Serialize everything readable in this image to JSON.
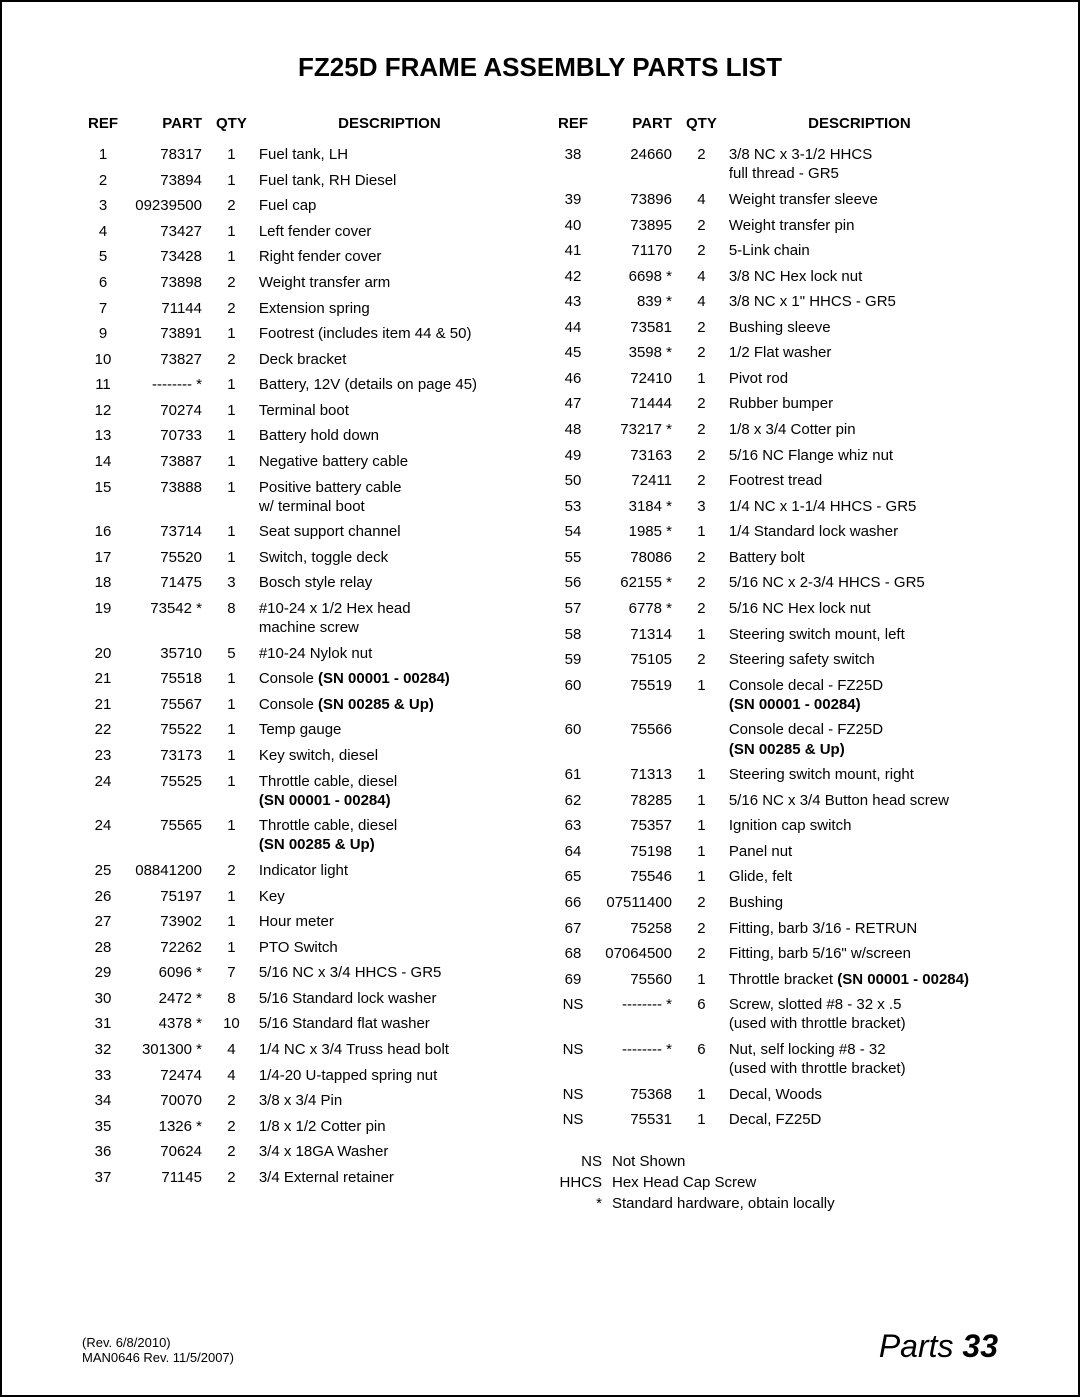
{
  "title": "FZ25D FRAME ASSEMBLY PARTS LIST",
  "headers": {
    "ref": "REF",
    "part": "PART",
    "qty": "QTY",
    "desc": "DESCRIPTION"
  },
  "left_rows": [
    {
      "ref": "1",
      "part": "78317",
      "qty": "1",
      "desc": "Fuel tank, LH"
    },
    {
      "ref": "2",
      "part": "73894",
      "qty": "1",
      "desc": "Fuel tank, RH Diesel"
    },
    {
      "ref": "3",
      "part": "09239500",
      "qty": "2",
      "desc": "Fuel cap"
    },
    {
      "ref": "4",
      "part": "73427",
      "qty": "1",
      "desc": "Left fender cover"
    },
    {
      "ref": "5",
      "part": "73428",
      "qty": "1",
      "desc": "Right fender cover"
    },
    {
      "ref": "6",
      "part": "73898",
      "qty": "2",
      "desc": "Weight transfer arm"
    },
    {
      "ref": "7",
      "part": "71144",
      "qty": "2",
      "desc": "Extension spring"
    },
    {
      "ref": "9",
      "part": "73891",
      "qty": "1",
      "desc": "Footrest (includes item 44 & 50)"
    },
    {
      "ref": "10",
      "part": "73827",
      "qty": "2",
      "desc": "Deck bracket"
    },
    {
      "ref": "11",
      "part": "-------- *",
      "qty": "1",
      "desc": "Battery, 12V (details on page 45)"
    },
    {
      "ref": "12",
      "part": "70274",
      "qty": "1",
      "desc": "Terminal boot"
    },
    {
      "ref": "13",
      "part": "70733",
      "qty": "1",
      "desc": "Battery hold down"
    },
    {
      "ref": "14",
      "part": "73887",
      "qty": "1",
      "desc": "Negative battery cable"
    },
    {
      "ref": "15",
      "part": "73888",
      "qty": "1",
      "desc": "Positive battery cable\nw/ terminal boot"
    },
    {
      "ref": "16",
      "part": "73714",
      "qty": "1",
      "desc": "Seat support channel"
    },
    {
      "ref": "17",
      "part": "75520",
      "qty": "1",
      "desc": "Switch, toggle deck"
    },
    {
      "ref": "18",
      "part": "71475",
      "qty": "3",
      "desc": "Bosch style relay"
    },
    {
      "ref": "19",
      "part": "73542 *",
      "qty": "8",
      "desc": "#10-24 x 1/2 Hex head\nmachine screw"
    },
    {
      "ref": "20",
      "part": "35710",
      "qty": "5",
      "desc": "#10-24 Nylok nut"
    },
    {
      "ref": "21",
      "part": "75518",
      "qty": "1",
      "desc": "Console ",
      "bold": "(SN 00001 - 00284)"
    },
    {
      "ref": "21",
      "part": "75567",
      "qty": "1",
      "desc": "Console ",
      "bold": "(SN 00285 & Up)"
    },
    {
      "ref": "22",
      "part": "75522",
      "qty": "1",
      "desc": "Temp gauge"
    },
    {
      "ref": "23",
      "part": "73173",
      "qty": "1",
      "desc": "Key switch, diesel"
    },
    {
      "ref": "24",
      "part": "75525",
      "qty": "1",
      "desc": "Throttle cable, diesel\n",
      "bold": "(SN 00001 - 00284)"
    },
    {
      "ref": "24",
      "part": "75565",
      "qty": "1",
      "desc": "Throttle cable, diesel\n",
      "bold": "(SN 00285 & Up)"
    },
    {
      "ref": "25",
      "part": "08841200",
      "qty": "2",
      "desc": "Indicator light"
    },
    {
      "ref": "26",
      "part": "75197",
      "qty": "1",
      "desc": "Key"
    },
    {
      "ref": "27",
      "part": "73902",
      "qty": "1",
      "desc": "Hour meter"
    },
    {
      "ref": "28",
      "part": "72262",
      "qty": "1",
      "desc": "PTO Switch"
    },
    {
      "ref": "29",
      "part": "6096 *",
      "qty": "7",
      "desc": "5/16 NC x 3/4 HHCS - GR5"
    },
    {
      "ref": "30",
      "part": "2472 *",
      "qty": "8",
      "desc": "5/16 Standard lock washer"
    },
    {
      "ref": "31",
      "part": "4378 *",
      "qty": "10",
      "desc": "5/16 Standard flat washer"
    },
    {
      "ref": "32",
      "part": "301300 *",
      "qty": "4",
      "desc": "1/4 NC x 3/4 Truss head bolt"
    },
    {
      "ref": "33",
      "part": "72474",
      "qty": "4",
      "desc": "1/4-20 U-tapped spring nut"
    },
    {
      "ref": "34",
      "part": "70070",
      "qty": "2",
      "desc": "3/8 x 3/4 Pin"
    },
    {
      "ref": "35",
      "part": "1326 *",
      "qty": "2",
      "desc": "1/8 x 1/2 Cotter pin"
    },
    {
      "ref": "36",
      "part": "70624",
      "qty": "2",
      "desc": "3/4 x 18GA Washer"
    },
    {
      "ref": "37",
      "part": "71145",
      "qty": "2",
      "desc": "3/4 External retainer"
    }
  ],
  "right_rows": [
    {
      "ref": "38",
      "part": "24660",
      "qty": "2",
      "desc": "3/8 NC x 3-1/2 HHCS\nfull thread - GR5"
    },
    {
      "ref": "39",
      "part": "73896",
      "qty": "4",
      "desc": "Weight transfer sleeve"
    },
    {
      "ref": "40",
      "part": "73895",
      "qty": "2",
      "desc": "Weight transfer pin"
    },
    {
      "ref": "41",
      "part": "71170",
      "qty": "2",
      "desc": "5-Link chain"
    },
    {
      "ref": "42",
      "part": "6698 *",
      "qty": "4",
      "desc": "3/8 NC Hex lock nut"
    },
    {
      "ref": "43",
      "part": "839 *",
      "qty": "4",
      "desc": "3/8 NC x 1\" HHCS - GR5"
    },
    {
      "ref": "44",
      "part": "73581",
      "qty": "2",
      "desc": "Bushing sleeve"
    },
    {
      "ref": "45",
      "part": "3598 *",
      "qty": "2",
      "desc": "1/2 Flat washer"
    },
    {
      "ref": "46",
      "part": "72410",
      "qty": "1",
      "desc": "Pivot rod"
    },
    {
      "ref": "47",
      "part": "71444",
      "qty": "2",
      "desc": "Rubber bumper"
    },
    {
      "ref": "48",
      "part": "73217 *",
      "qty": "2",
      "desc": "1/8 x 3/4 Cotter pin"
    },
    {
      "ref": "49",
      "part": "73163",
      "qty": "2",
      "desc": "5/16 NC Flange whiz nut"
    },
    {
      "ref": "50",
      "part": "72411",
      "qty": "2",
      "desc": "Footrest tread"
    },
    {
      "ref": "53",
      "part": "3184 *",
      "qty": "3",
      "desc": "1/4 NC x 1-1/4 HHCS - GR5"
    },
    {
      "ref": "54",
      "part": "1985 *",
      "qty": "1",
      "desc": "1/4 Standard lock washer"
    },
    {
      "ref": "55",
      "part": "78086",
      "qty": "2",
      "desc": "Battery bolt"
    },
    {
      "ref": "56",
      "part": "62155 *",
      "qty": "2",
      "desc": "5/16 NC x 2-3/4 HHCS - GR5"
    },
    {
      "ref": "57",
      "part": "6778 *",
      "qty": "2",
      "desc": "5/16 NC Hex lock nut"
    },
    {
      "ref": "58",
      "part": "71314",
      "qty": "1",
      "desc": "Steering switch mount, left"
    },
    {
      "ref": "59",
      "part": "75105",
      "qty": "2",
      "desc": "Steering safety switch"
    },
    {
      "ref": "60",
      "part": "75519",
      "qty": "1",
      "desc": "Console decal - FZ25D\n",
      "bold": "(SN 00001 - 00284)"
    },
    {
      "ref": "60",
      "part": "75566",
      "qty": "",
      "desc": "Console decal - FZ25D\n",
      "bold": "(SN 00285 & Up)"
    },
    {
      "ref": "61",
      "part": "71313",
      "qty": "1",
      "desc": "Steering switch mount, right"
    },
    {
      "ref": "62",
      "part": "78285",
      "qty": "1",
      "desc": "5/16 NC x 3/4 Button head screw"
    },
    {
      "ref": "63",
      "part": "75357",
      "qty": "1",
      "desc": "Ignition cap switch"
    },
    {
      "ref": "64",
      "part": "75198",
      "qty": "1",
      "desc": "Panel nut"
    },
    {
      "ref": "65",
      "part": "75546",
      "qty": "1",
      "desc": "Glide, felt"
    },
    {
      "ref": "66",
      "part": "07511400",
      "qty": "2",
      "desc": "Bushing"
    },
    {
      "ref": "67",
      "part": "75258",
      "qty": "2",
      "desc": "Fitting, barb 3/16 - RETRUN"
    },
    {
      "ref": "68",
      "part": "07064500",
      "qty": "2",
      "desc": "Fitting, barb 5/16\" w/screen"
    },
    {
      "ref": "69",
      "part": "75560",
      "qty": "1",
      "desc": "Throttle bracket ",
      "bold": "(SN 00001 - 00284)"
    },
    {
      "ref": "NS",
      "part": "-------- *",
      "qty": "6",
      "desc": "Screw, slotted #8 - 32 x .5\n(used with throttle bracket)"
    },
    {
      "ref": "NS",
      "part": "-------- *",
      "qty": "6",
      "desc": "Nut, self locking #8 - 32\n(used with throttle bracket)"
    },
    {
      "ref": "NS",
      "part": "75368",
      "qty": "1",
      "desc": "Decal, Woods"
    },
    {
      "ref": "NS",
      "part": "75531",
      "qty": "1",
      "desc": "Decal, FZ25D"
    }
  ],
  "legend": [
    {
      "key": "NS",
      "val": "Not Shown"
    },
    {
      "key": "HHCS",
      "val": "Hex Head Cap Screw"
    },
    {
      "key": "*",
      "val": "Standard hardware, obtain locally"
    }
  ],
  "footer": {
    "rev1": "(Rev. 6/8/2010)",
    "rev2": "MAN0646 Rev. 11/5/2007)",
    "page_label": "Parts ",
    "page_num": "33"
  }
}
